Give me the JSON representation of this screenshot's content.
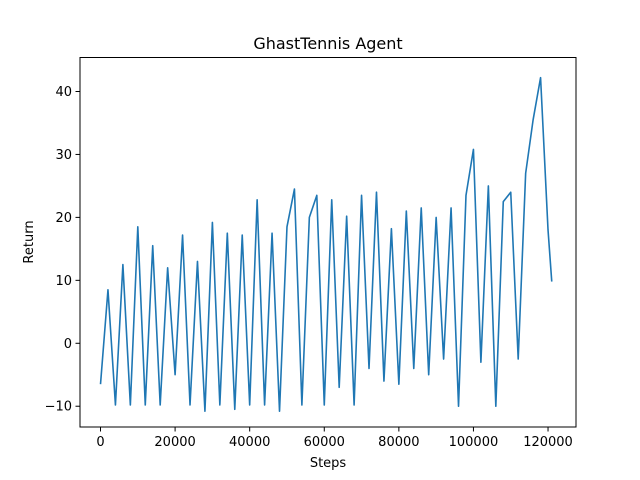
{
  "chart_data": {
    "type": "line",
    "title": "GhastTennis Agent",
    "xlabel": "Steps",
    "ylabel": "Return",
    "xlim": [
      -5500,
      127500
    ],
    "ylim": [
      -13.3,
      45.4
    ],
    "xticks": [
      0,
      20000,
      40000,
      60000,
      80000,
      100000,
      120000
    ],
    "xtick_labels": [
      "0",
      "20000",
      "40000",
      "60000",
      "80000",
      "100000",
      "120000"
    ],
    "yticks": [
      -10,
      0,
      10,
      20,
      30,
      40
    ],
    "ytick_labels": [
      "−10",
      "0",
      "10",
      "20",
      "30",
      "40"
    ],
    "grid": false,
    "series": [
      {
        "color": "#1f77b4",
        "x": [
          0,
          2000,
          4000,
          6000,
          8000,
          10000,
          12000,
          14000,
          16000,
          18000,
          20000,
          22000,
          24000,
          26000,
          28000,
          30000,
          32000,
          34000,
          36000,
          38000,
          40000,
          42000,
          44000,
          46000,
          48000,
          50000,
          52000,
          54000,
          56000,
          58000,
          60000,
          62000,
          64000,
          66000,
          68000,
          70000,
          72000,
          74000,
          76000,
          78000,
          80000,
          82000,
          84000,
          86000,
          88000,
          90000,
          92000,
          94000,
          96000,
          98000,
          100000,
          102000,
          104000,
          106000,
          108000,
          110000,
          112000,
          114000,
          116000,
          118000,
          120000,
          121000
        ],
        "y": [
          -6.5,
          8.5,
          -9.8,
          12.5,
          -9.8,
          18.5,
          -9.8,
          15.5,
          -9.8,
          12,
          -5,
          17.2,
          -9.8,
          13,
          -10.8,
          19.2,
          -9.8,
          17.5,
          -10.5,
          17.2,
          -9.8,
          22.8,
          -9.8,
          17.5,
          -10.8,
          18.5,
          24.5,
          -9.8,
          20,
          23.5,
          -9.8,
          22.8,
          -7,
          20.2,
          -9.8,
          23.5,
          -4,
          24,
          -6,
          18.2,
          -6.5,
          21,
          -4,
          21.5,
          -5,
          20,
          -2.5,
          21.5,
          -10,
          23.5,
          30.8,
          -3,
          25,
          -10,
          22.5,
          24,
          -2.5,
          27,
          35.5,
          42.2,
          18,
          9.8
        ]
      }
    ]
  }
}
